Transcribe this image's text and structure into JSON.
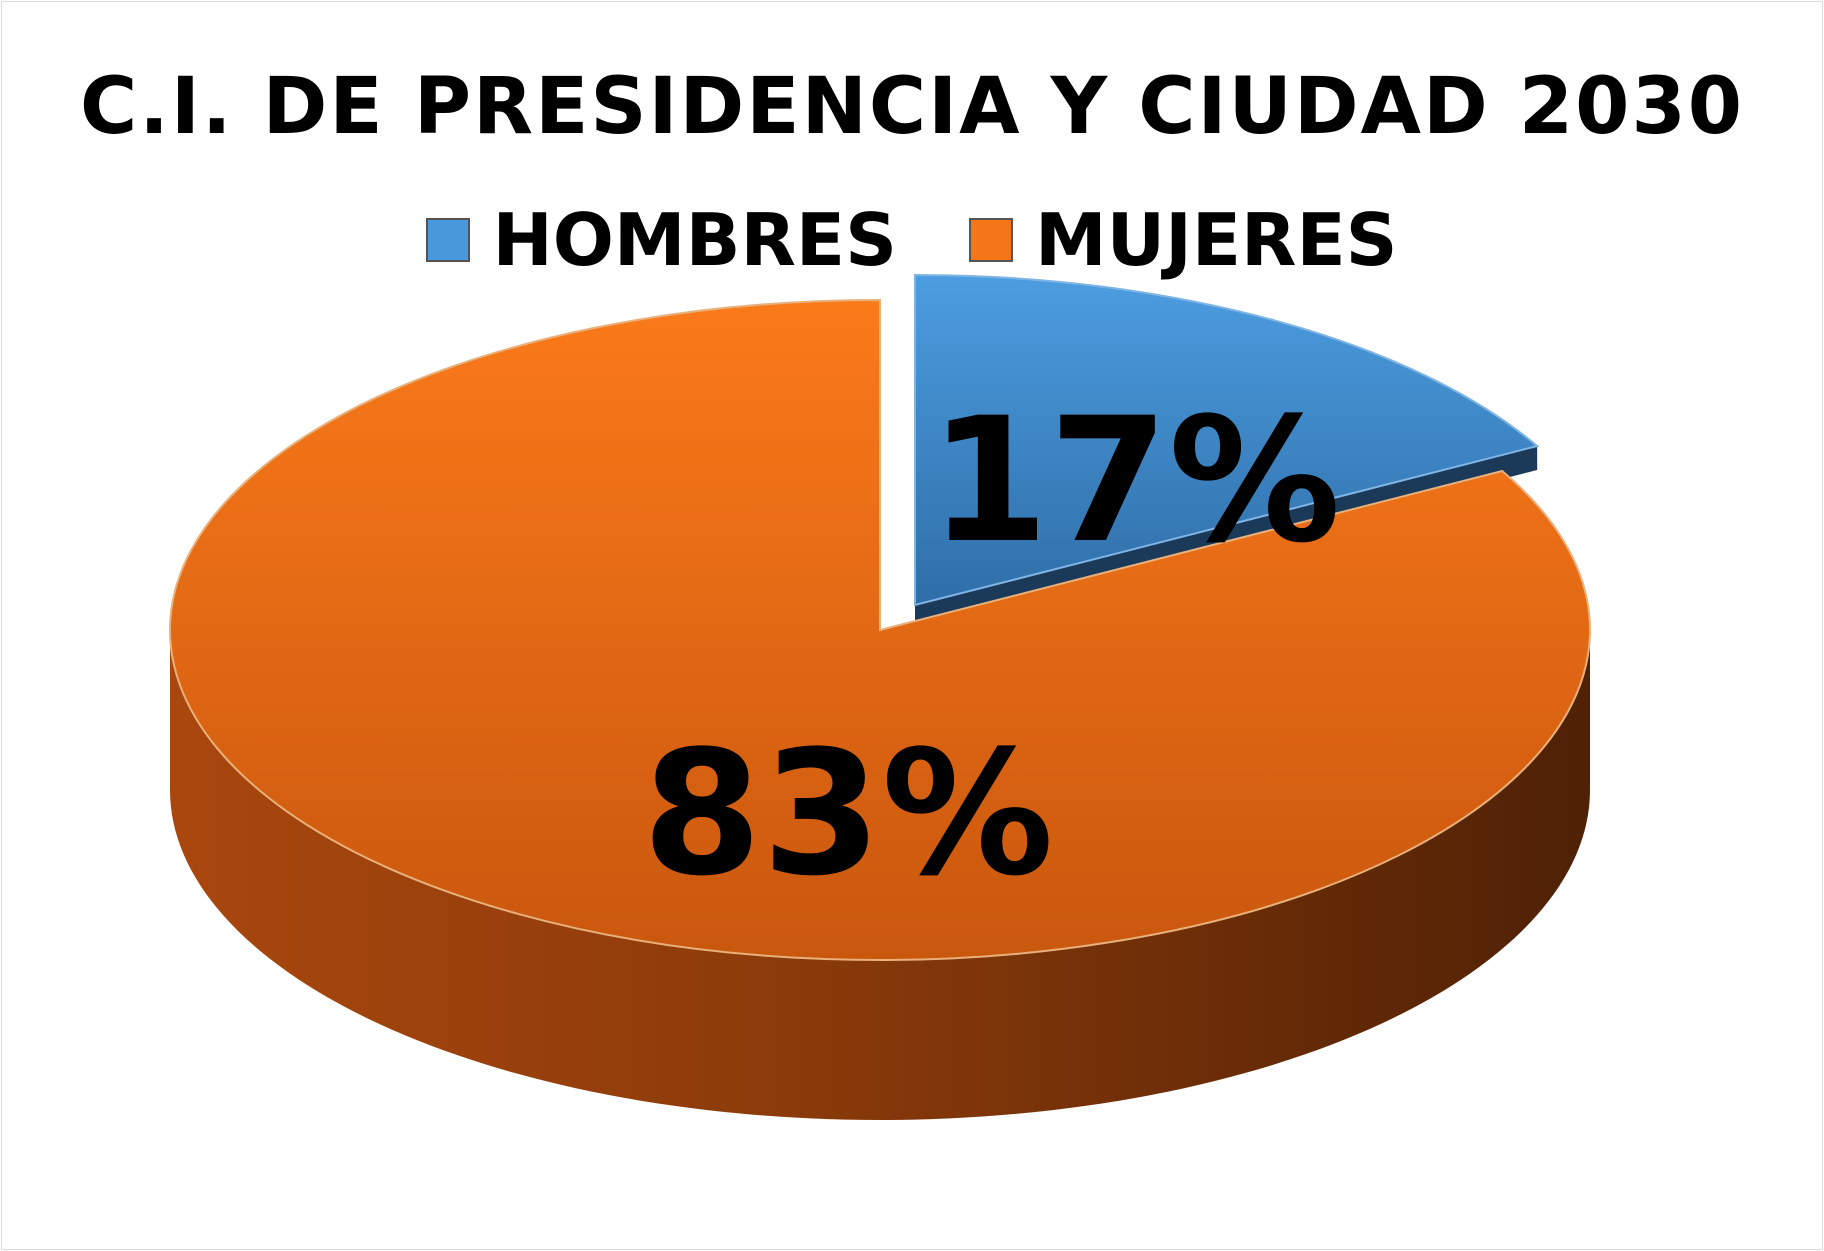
{
  "chart_data": {
    "type": "pie",
    "title": "C.I. DE PRESIDENCIA Y CIUDAD 2030",
    "legend_position": "top",
    "style": "3d-exploded",
    "categories": [
      "HOMBRES",
      "MUJERES"
    ],
    "values": [
      17,
      83
    ],
    "labels": [
      "17%",
      "83%"
    ],
    "colors": [
      "#4a98dc",
      "#f57618"
    ],
    "series": [
      {
        "name": "HOMBRES",
        "value": 17,
        "label": "17%",
        "color": "#4a98dc"
      },
      {
        "name": "MUJERES",
        "value": 83,
        "label": "83%",
        "color": "#f57618"
      }
    ]
  }
}
